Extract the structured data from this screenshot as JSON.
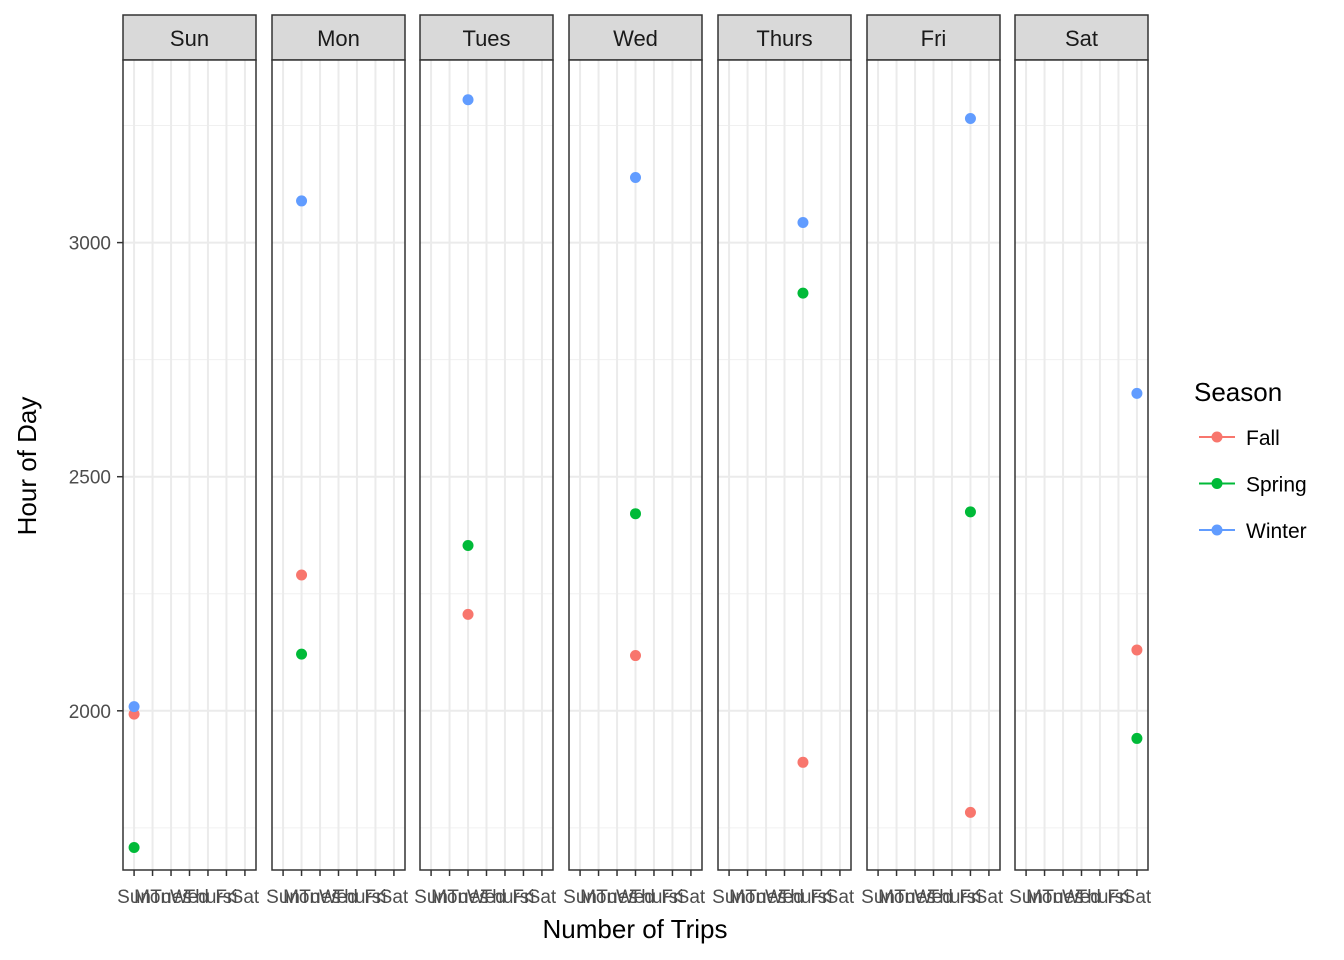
{
  "chart_data": {
    "type": "scatter",
    "xlabel": "Number of Trips",
    "ylabel": "Hour of Day",
    "x_categories": [
      "Sun",
      "Mon",
      "Tues",
      "Wed",
      "Thurs",
      "Fri",
      "Sat"
    ],
    "facets": [
      "Sun",
      "Mon",
      "Tues",
      "Wed",
      "Thurs",
      "Fri",
      "Sat"
    ],
    "ylim": [
      1660,
      3390
    ],
    "y_ticks": [
      2000,
      2500,
      3000
    ],
    "grid": true,
    "legend": {
      "title": "Season",
      "position": "right"
    },
    "series": [
      {
        "name": "Fall",
        "color": "#F8766D",
        "points": [
          {
            "facet": "Sun",
            "x": "Sun",
            "y": 1993
          },
          {
            "facet": "Mon",
            "x": "Mon",
            "y": 2290
          },
          {
            "facet": "Tues",
            "x": "Tues",
            "y": 2206
          },
          {
            "facet": "Wed",
            "x": "Wed",
            "y": 2118
          },
          {
            "facet": "Thurs",
            "x": "Thurs",
            "y": 1890
          },
          {
            "facet": "Fri",
            "x": "Fri",
            "y": 1783
          },
          {
            "facet": "Sat",
            "x": "Sat",
            "y": 2130
          }
        ]
      },
      {
        "name": "Spring",
        "color": "#00BA38",
        "points": [
          {
            "facet": "Sun",
            "x": "Sun",
            "y": 1708
          },
          {
            "facet": "Mon",
            "x": "Mon",
            "y": 2121
          },
          {
            "facet": "Tues",
            "x": "Tues",
            "y": 2353
          },
          {
            "facet": "Wed",
            "x": "Wed",
            "y": 2421
          },
          {
            "facet": "Thurs",
            "x": "Thurs",
            "y": 2892
          },
          {
            "facet": "Fri",
            "x": "Fri",
            "y": 2425
          },
          {
            "facet": "Sat",
            "x": "Sat",
            "y": 1941
          }
        ]
      },
      {
        "name": "Winter",
        "color": "#619CFF",
        "points": [
          {
            "facet": "Sun",
            "x": "Sun",
            "y": 2009
          },
          {
            "facet": "Mon",
            "x": "Mon",
            "y": 3089
          },
          {
            "facet": "Tues",
            "x": "Tues",
            "y": 3305
          },
          {
            "facet": "Wed",
            "x": "Wed",
            "y": 3139
          },
          {
            "facet": "Thurs",
            "x": "Thurs",
            "y": 3043
          },
          {
            "facet": "Fri",
            "x": "Fri",
            "y": 3265
          },
          {
            "facet": "Sat",
            "x": "Sat",
            "y": 2678
          }
        ]
      }
    ]
  }
}
